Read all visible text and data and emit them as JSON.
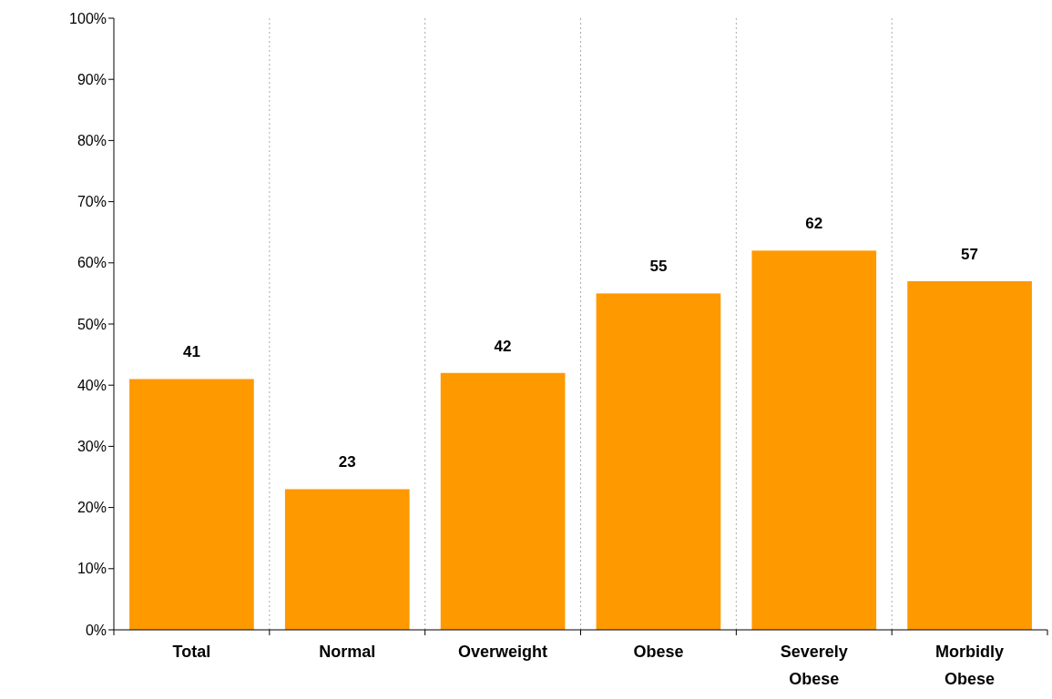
{
  "chart_data": {
    "type": "bar",
    "categories": [
      "Total",
      "Normal",
      "Overweight",
      "Obese",
      "Severely Obese",
      "Morbidly Obese"
    ],
    "values": [
      41,
      23,
      42,
      55,
      62,
      57
    ],
    "color": "#ff9900",
    "data_labels": true,
    "grid": "x",
    "ylim": [
      0,
      100
    ],
    "yticks": [
      {
        "value": 0,
        "label": "0%"
      },
      {
        "value": 10,
        "label": "10%"
      },
      {
        "value": 20,
        "label": "20%"
      },
      {
        "value": 30,
        "label": "30%"
      },
      {
        "value": 40,
        "label": "40%"
      },
      {
        "value": 50,
        "label": "50%"
      },
      {
        "value": 60,
        "label": "60%"
      },
      {
        "value": 70,
        "label": "70%"
      },
      {
        "value": 80,
        "label": "80%"
      },
      {
        "value": 90,
        "label": "90%"
      },
      {
        "value": 100,
        "label": "100%"
      }
    ]
  }
}
